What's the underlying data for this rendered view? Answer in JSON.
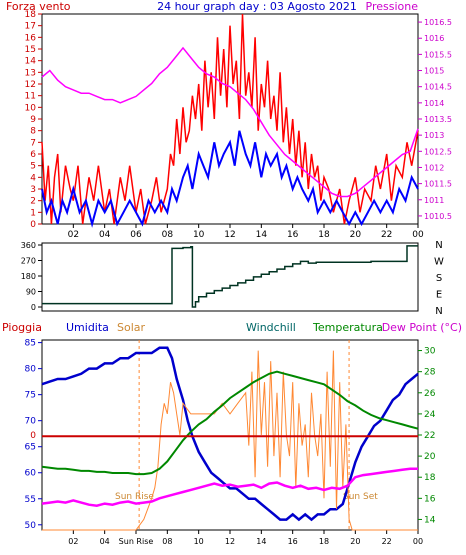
{
  "chart_data": [
    {
      "type": "line",
      "header_left": "Forza vento",
      "title": "24 hour graph day : 03 Agosto 2021",
      "header_right": "Pressione",
      "y_left_ticks": [
        "0",
        "1",
        "2",
        "3",
        "4",
        "5",
        "6",
        "7",
        "8",
        "9",
        "10",
        "11",
        "12",
        "13",
        "14",
        "15",
        "16",
        "17",
        "18"
      ],
      "y_right_ticks": [
        "1010.5",
        "1011",
        "1011.5",
        "1012",
        "1012.5",
        "1013",
        "1013.5",
        "1014",
        "1014.5",
        "1015",
        "1015.5",
        "1016",
        "1016.5"
      ],
      "x_ticks": [
        "02",
        "04",
        "06",
        "08",
        "10",
        "12",
        "14",
        "16",
        "18",
        "20",
        "22",
        "00"
      ],
      "xlim": [
        0,
        24
      ],
      "ylim_left": [
        0,
        18
      ],
      "ylim_right": [
        1010.25,
        1016.75
      ],
      "series": [
        {
          "color": "#ff0000",
          "axis": "left",
          "x": [
            0,
            0.2,
            0.4,
            0.6,
            0.8,
            1,
            1.2,
            1.5,
            1.8,
            2,
            2.3,
            2.6,
            3,
            3.3,
            3.6,
            4,
            4.3,
            4.6,
            5,
            5.3,
            5.6,
            6,
            6.3,
            6.6,
            7,
            7.3,
            7.6,
            8,
            8.2,
            8.4,
            8.6,
            8.8,
            9,
            9.2,
            9.4,
            9.6,
            9.8,
            10,
            10.2,
            10.4,
            10.6,
            10.8,
            11,
            11.2,
            11.4,
            11.6,
            11.8,
            12,
            12.2,
            12.4,
            12.6,
            12.8,
            13,
            13.2,
            13.4,
            13.6,
            13.8,
            14,
            14.2,
            14.4,
            14.6,
            14.8,
            15,
            15.2,
            15.4,
            15.6,
            15.8,
            16,
            16.2,
            16.4,
            16.6,
            16.8,
            17,
            17.2,
            17.4,
            17.6,
            17.8,
            18,
            18.3,
            18.6,
            19,
            19.3,
            19.6,
            20,
            20.3,
            20.6,
            21,
            21.3,
            21.6,
            22,
            22.3,
            22.6,
            23,
            23.3,
            23.6,
            24
          ],
          "y": [
            7,
            2,
            5,
            0,
            4,
            6,
            1,
            5,
            3,
            2,
            5,
            0,
            4,
            2,
            5,
            1,
            3,
            0,
            4,
            2,
            5,
            1,
            3,
            0,
            2,
            4,
            1,
            3,
            6,
            5,
            9,
            6,
            10,
            7,
            8,
            11,
            9,
            12,
            8,
            14,
            10,
            13,
            9,
            16,
            11,
            15,
            10,
            17,
            12,
            14,
            9,
            18,
            11,
            13,
            10,
            16,
            8,
            12,
            10,
            14,
            9,
            11,
            8,
            13,
            7,
            10,
            6,
            9,
            5,
            8,
            4,
            7,
            3,
            6,
            4,
            5,
            2,
            4,
            3,
            1,
            3,
            0,
            2,
            4,
            1,
            3,
            2,
            5,
            3,
            6,
            2,
            5,
            4,
            7,
            5,
            8
          ]
        },
        {
          "color": "#0000ff",
          "axis": "left",
          "x": [
            0,
            0.3,
            0.6,
            1,
            1.3,
            1.6,
            2,
            2.4,
            2.8,
            3.2,
            3.6,
            4,
            4.4,
            4.8,
            5.2,
            5.6,
            6,
            6.4,
            6.8,
            7.2,
            7.6,
            8,
            8.3,
            8.6,
            9,
            9.3,
            9.6,
            10,
            10.3,
            10.6,
            11,
            11.3,
            11.6,
            12,
            12.3,
            12.6,
            13,
            13.3,
            13.6,
            14,
            14.3,
            14.6,
            15,
            15.3,
            15.6,
            16,
            16.3,
            16.6,
            17,
            17.3,
            17.6,
            18,
            18.4,
            18.8,
            19.2,
            19.6,
            20,
            20.4,
            20.8,
            21.2,
            21.6,
            22,
            22.4,
            22.8,
            23.2,
            23.6,
            24
          ],
          "y": [
            3,
            1,
            2,
            0,
            2,
            1,
            3,
            1,
            2,
            0,
            2,
            1,
            2,
            0,
            1,
            2,
            1,
            0,
            2,
            1,
            2,
            1,
            3,
            2,
            4,
            5,
            3,
            6,
            5,
            4,
            7,
            5,
            6,
            7,
            5,
            8,
            6,
            5,
            7,
            4,
            6,
            5,
            6,
            4,
            5,
            3,
            4,
            3,
            2,
            3,
            1,
            2,
            1,
            2,
            1,
            0,
            1,
            0,
            1,
            2,
            1,
            2,
            1,
            3,
            2,
            4,
            3
          ]
        },
        {
          "color": "#ff00ff",
          "axis": "right",
          "x": [
            0,
            0.5,
            1,
            1.5,
            2,
            2.5,
            3,
            3.5,
            4,
            4.5,
            5,
            5.5,
            6,
            6.5,
            7,
            7.5,
            8,
            8.5,
            9,
            9.5,
            10,
            10.5,
            11,
            11.5,
            12,
            12.5,
            13,
            13.5,
            14,
            14.5,
            15,
            15.5,
            16,
            16.5,
            17,
            17.5,
            18,
            18.5,
            19,
            19.5,
            20,
            20.5,
            21,
            21.5,
            22,
            22.5,
            23,
            23.5,
            24
          ],
          "y": [
            1014.8,
            1015,
            1014.7,
            1014.5,
            1014.4,
            1014.3,
            1014.3,
            1014.2,
            1014.1,
            1014.1,
            1014,
            1014.1,
            1014.2,
            1014.4,
            1014.6,
            1014.9,
            1015.1,
            1015.4,
            1015.7,
            1015.4,
            1015.1,
            1014.9,
            1014.8,
            1014.6,
            1014.5,
            1014.3,
            1014.1,
            1013.8,
            1013.4,
            1013,
            1012.7,
            1012.4,
            1012.2,
            1012,
            1011.8,
            1011.6,
            1011.4,
            1011.2,
            1011.1,
            1011.1,
            1011.2,
            1011.4,
            1011.6,
            1011.8,
            1012,
            1012.2,
            1012.4,
            1012.5,
            1013.2
          ]
        }
      ]
    },
    {
      "type": "line",
      "title": "",
      "y_left_ticks": [
        "0",
        "90",
        "180",
        "270",
        "360"
      ],
      "y_right_labels": [
        "N",
        "W",
        "S",
        "E",
        "N"
      ],
      "xlim": [
        0,
        24
      ],
      "ylim": [
        0,
        360
      ],
      "series": [
        {
          "color": "#003322",
          "x": [
            0,
            1,
            2,
            3,
            4,
            5,
            6,
            7,
            8,
            8.2,
            8.3,
            8.5,
            9,
            9.5,
            9.6,
            9.8,
            10,
            10.5,
            11,
            11.5,
            12,
            12.5,
            13,
            13.5,
            14,
            14.5,
            15,
            15.5,
            16,
            16.5,
            17,
            17.5,
            18,
            19,
            20,
            21,
            22,
            23,
            23.3,
            23.6,
            24
          ],
          "y": [
            20,
            20,
            20,
            20,
            20,
            20,
            20,
            20,
            20,
            20,
            340,
            340,
            345,
            350,
            0,
            30,
            60,
            80,
            95,
            110,
            125,
            140,
            155,
            175,
            190,
            205,
            220,
            235,
            250,
            265,
            255,
            260,
            260,
            260,
            260,
            265,
            265,
            265,
            355,
            355,
            355
          ]
        }
      ]
    },
    {
      "type": "line",
      "labels": {
        "rain": "Pioggia",
        "humidity": "Umidita",
        "solar": "Solar",
        "windchill": "Windchill",
        "temperature": "Temperatura",
        "dewpoint": "Dew Point (°C)"
      },
      "y_left_ticks": [
        "50",
        "55",
        "60",
        "65",
        "70",
        "75",
        "80",
        "85"
      ],
      "y_right_ticks": [
        "14",
        "16",
        "18",
        "20",
        "22",
        "24",
        "26",
        "28",
        "30"
      ],
      "rain_tick": "0",
      "x_ticks": [
        "02",
        "04",
        "Sun Rise",
        "08",
        "10",
        "12",
        "14",
        "16",
        "18",
        "20",
        "22",
        "00"
      ],
      "annotations": [
        "Sun Rise",
        "Sun Set"
      ],
      "xlim": [
        0,
        24
      ],
      "ylim_left": [
        49,
        85.5
      ],
      "ylim_right": [
        13,
        31
      ],
      "series": [
        {
          "name": "Umidita",
          "color": "#0000cc",
          "axis": "left",
          "x": [
            0,
            0.5,
            1,
            1.5,
            2,
            2.5,
            3,
            3.5,
            4,
            4.5,
            5,
            5.5,
            6,
            6.5,
            7,
            7.5,
            8,
            8.3,
            8.6,
            9,
            9.3,
            9.6,
            10,
            10.4,
            10.8,
            11.2,
            11.6,
            12,
            12.4,
            12.8,
            13.2,
            13.6,
            14,
            14.4,
            14.8,
            15.2,
            15.6,
            16,
            16.4,
            16.8,
            17.2,
            17.6,
            18,
            18.4,
            18.8,
            19.2,
            19.6,
            20,
            20.4,
            20.8,
            21.2,
            21.6,
            22,
            22.4,
            22.8,
            23.2,
            23.6,
            24
          ],
          "y": [
            77,
            77.5,
            78,
            78,
            78.5,
            79,
            80,
            80,
            81,
            81,
            82,
            82,
            83,
            83,
            83,
            84,
            84,
            82,
            78,
            74,
            70,
            67,
            64,
            62,
            60,
            59,
            58,
            57,
            57,
            56,
            55,
            55,
            54,
            53,
            52,
            51,
            51,
            52,
            51,
            52,
            51,
            52,
            52,
            53,
            53,
            54,
            58,
            62,
            65,
            67,
            69,
            70,
            72,
            74,
            75,
            77,
            78,
            79
          ]
        },
        {
          "name": "Solar",
          "color": "#ff8833",
          "axis": "right",
          "x": [
            0,
            5,
            6,
            6.5,
            7,
            7.2,
            7.4,
            7.6,
            7.8,
            8,
            8.2,
            8.4,
            8.6,
            8.8,
            9,
            9.5,
            10,
            10.5,
            11,
            11.5,
            12,
            12.5,
            13,
            13.2,
            13.4,
            13.6,
            13.8,
            14,
            14.2,
            14.4,
            14.6,
            14.8,
            15,
            15.2,
            15.4,
            15.6,
            15.8,
            16,
            16.2,
            16.4,
            16.6,
            16.8,
            17,
            17.2,
            17.4,
            17.6,
            17.8,
            18,
            18.2,
            18.4,
            18.6,
            18.8,
            19,
            19.2,
            19.4,
            19.6,
            19.8,
            20,
            24
          ],
          "y": [
            13,
            13,
            13,
            14,
            16,
            17,
            19,
            23,
            25,
            24,
            27,
            26,
            24,
            22,
            25,
            24,
            24,
            24,
            24,
            25,
            24,
            25,
            26,
            21,
            28,
            18,
            30,
            22,
            27,
            19,
            29,
            20,
            26,
            18,
            28,
            22,
            20,
            27,
            17,
            25,
            21,
            23,
            18,
            26,
            22,
            20,
            24,
            16,
            28,
            19,
            30,
            15,
            27,
            17,
            23,
            14,
            13,
            13,
            13
          ]
        },
        {
          "name": "Temperatura",
          "color": "#008800",
          "axis": "right",
          "x": [
            0,
            0.5,
            1,
            1.5,
            2,
            2.5,
            3,
            3.5,
            4,
            4.5,
            5,
            5.5,
            6,
            6.5,
            7,
            7.5,
            8,
            8.5,
            9,
            9.5,
            10,
            10.5,
            11,
            11.5,
            12,
            12.5,
            13,
            13.5,
            14,
            14.5,
            15,
            15.5,
            16,
            16.5,
            17,
            17.5,
            18,
            18.5,
            19,
            19.5,
            20,
            20.5,
            21,
            21.5,
            22,
            22.5,
            23,
            23.5,
            24
          ],
          "y": [
            19,
            18.9,
            18.8,
            18.8,
            18.7,
            18.6,
            18.6,
            18.5,
            18.5,
            18.4,
            18.4,
            18.4,
            18.3,
            18.3,
            18.4,
            18.8,
            19.5,
            20.5,
            21.5,
            22.3,
            23,
            23.5,
            24.2,
            24.8,
            25.5,
            26,
            26.5,
            27,
            27.4,
            27.8,
            28,
            27.8,
            27.6,
            27.4,
            27.2,
            27,
            26.8,
            26.3,
            25.8,
            25.2,
            24.8,
            24.3,
            23.9,
            23.6,
            23.4,
            23.2,
            23,
            22.8,
            22.6
          ]
        },
        {
          "name": "Dew Point",
          "color": "#ff00ff",
          "axis": "right",
          "x": [
            0,
            0.5,
            1,
            1.5,
            2,
            2.5,
            3,
            3.5,
            4,
            4.5,
            5,
            5.5,
            6,
            6.5,
            7,
            7.5,
            8,
            8.5,
            9,
            9.5,
            10,
            10.5,
            11,
            11.5,
            12,
            12.5,
            13,
            13.5,
            14,
            14.5,
            15,
            15.5,
            16,
            16.5,
            17,
            17.5,
            18,
            18.5,
            19,
            19.5,
            20,
            20.5,
            21,
            21.5,
            22,
            22.5,
            23,
            23.5,
            24
          ],
          "y": [
            15.5,
            15.6,
            15.7,
            15.6,
            15.8,
            15.6,
            15.4,
            15.3,
            15.5,
            15.4,
            15.6,
            15.7,
            15.5,
            15.6,
            15.7,
            16,
            16.2,
            16.4,
            16.6,
            16.8,
            17,
            17.2,
            17.4,
            17.2,
            17.3,
            17.1,
            17.2,
            17.3,
            17,
            17.4,
            17.5,
            17.2,
            17.0,
            17.2,
            16.9,
            17.0,
            16.8,
            17.0,
            16.9,
            17.2,
            18.0,
            18.2,
            18.3,
            18.4,
            18.5,
            18.6,
            18.7,
            18.8,
            18.8
          ]
        },
        {
          "name": "Pioggia",
          "color": "#cc0000",
          "axis": "left",
          "x": [
            0,
            24
          ],
          "y": [
            67,
            67
          ]
        }
      ]
    }
  ]
}
